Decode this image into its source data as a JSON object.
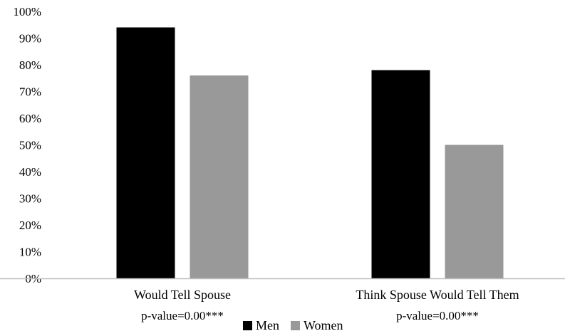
{
  "chart_data": {
    "type": "bar",
    "categories": [
      "Would Tell Spouse",
      "Think Spouse Would Tell Them"
    ],
    "annotations": [
      "p-value=0.00***",
      "p-value=0.00***"
    ],
    "series": [
      {
        "name": "Men",
        "values": [
          94,
          78
        ],
        "color": "#000000"
      },
      {
        "name": "Women",
        "values": [
          76,
          50
        ],
        "color": "#999999"
      }
    ],
    "yticks": [
      "0%",
      "10%",
      "20%",
      "30%",
      "40%",
      "50%",
      "60%",
      "70%",
      "80%",
      "90%",
      "100%"
    ],
    "ylim": [
      0,
      100
    ],
    "grid": false,
    "legend_position": "bottom"
  }
}
